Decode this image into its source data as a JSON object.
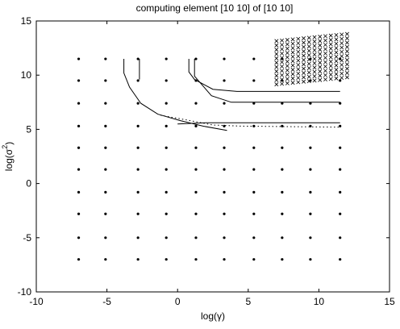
{
  "chart_data": {
    "type": "scatter",
    "title": "computing element [10  10] of [10  10]",
    "xlabel": "log(γ)",
    "ylabel_base": "log(σ",
    "ylabel_sup": "2",
    "ylabel_close": ")",
    "xlim": [
      -10,
      15
    ],
    "ylim": [
      -10,
      15
    ],
    "xticks": [
      -10,
      -5,
      0,
      5,
      10,
      15
    ],
    "yticks": [
      -10,
      -5,
      0,
      5,
      10,
      15
    ],
    "grid": false,
    "legend": "none",
    "grid_points": {
      "x": [
        -7,
        -5.1,
        -2.8,
        -0.8,
        1.3,
        3.3,
        5.4,
        7.4,
        9.4,
        11.5
      ],
      "y": [
        -7,
        -5,
        -2.8,
        -0.8,
        1.3,
        3.3,
        5.3,
        7.4,
        9.5,
        11.5
      ]
    },
    "evaluated_region": {
      "x": [
        7.0,
        12.0
      ],
      "y": [
        9.5,
        13.5
      ],
      "marker": "x"
    },
    "contours": [
      {
        "name": "outer",
        "points": [
          [
            -3.8,
            11.5
          ],
          [
            -3.8,
            10.2
          ],
          [
            -3.4,
            8.9
          ],
          [
            -2.6,
            7.4
          ],
          [
            -1.4,
            6.4
          ],
          [
            0.2,
            5.8
          ],
          [
            1.8,
            5.3
          ],
          [
            3.5,
            4.9
          ]
        ]
      },
      {
        "name": "inner-top",
        "points": [
          [
            -2.7,
            11.5
          ],
          [
            -2.7,
            9.6
          ]
        ]
      },
      {
        "name": "middle",
        "points": [
          [
            0.8,
            11.5
          ],
          [
            0.8,
            10.3
          ],
          [
            1.2,
            9.6
          ],
          [
            2.5,
            8.7
          ],
          [
            4.2,
            8.5
          ],
          [
            11.5,
            8.5
          ]
        ]
      },
      {
        "name": "middle-lower",
        "points": [
          [
            1.2,
            11.5
          ],
          [
            1.2,
            9.9
          ],
          [
            2.4,
            8.1
          ],
          [
            3.8,
            7.5
          ],
          [
            11.5,
            7.5
          ]
        ]
      },
      {
        "name": "lower",
        "points": [
          [
            0.0,
            5.5
          ],
          [
            2.0,
            5.6
          ],
          [
            4.0,
            5.6
          ],
          [
            11.5,
            5.6
          ]
        ]
      },
      {
        "name": "lower-dotted",
        "points": [
          [
            -1.2,
            6.3
          ],
          [
            0.5,
            5.9
          ],
          [
            2.5,
            5.4
          ],
          [
            4.5,
            5.3
          ],
          [
            11.5,
            5.2
          ]
        ],
        "style": "dotted"
      }
    ]
  }
}
